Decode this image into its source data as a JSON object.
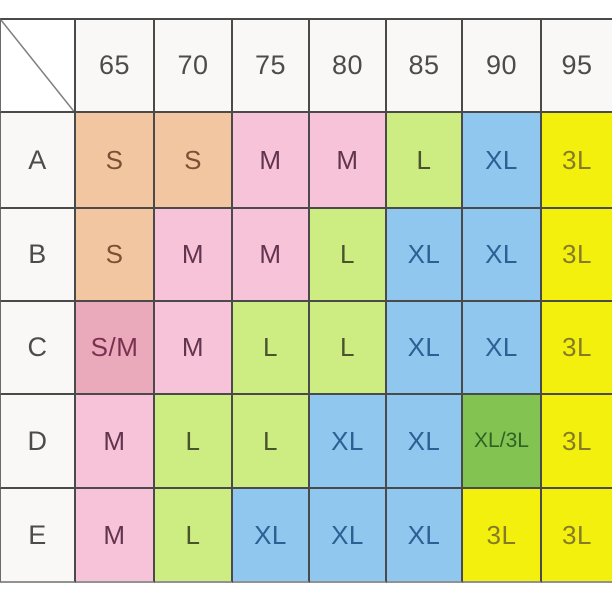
{
  "table": {
    "corner_label": "",
    "column_headers": [
      "65",
      "70",
      "75",
      "80",
      "85",
      "90",
      "95"
    ],
    "rows": [
      {
        "label": "A",
        "cells": [
          {
            "text": "S",
            "color": "peach"
          },
          {
            "text": "S",
            "color": "peach"
          },
          {
            "text": "M",
            "color": "pink"
          },
          {
            "text": "M",
            "color": "pink"
          },
          {
            "text": "L",
            "color": "lightgreen"
          },
          {
            "text": "XL",
            "color": "blue"
          },
          {
            "text": "3L",
            "color": "yellow"
          }
        ]
      },
      {
        "label": "B",
        "cells": [
          {
            "text": "S",
            "color": "peach"
          },
          {
            "text": "M",
            "color": "pink"
          },
          {
            "text": "M",
            "color": "pink"
          },
          {
            "text": "L",
            "color": "lightgreen"
          },
          {
            "text": "XL",
            "color": "blue"
          },
          {
            "text": "XL",
            "color": "blue"
          },
          {
            "text": "3L",
            "color": "yellow"
          }
        ]
      },
      {
        "label": "C",
        "cells": [
          {
            "text": "S/M",
            "color": "rose"
          },
          {
            "text": "M",
            "color": "pink"
          },
          {
            "text": "L",
            "color": "lightgreen"
          },
          {
            "text": "L",
            "color": "lightgreen"
          },
          {
            "text": "XL",
            "color": "blue"
          },
          {
            "text": "XL",
            "color": "blue"
          },
          {
            "text": "3L",
            "color": "yellow"
          }
        ]
      },
      {
        "label": "D",
        "cells": [
          {
            "text": "M",
            "color": "pink"
          },
          {
            "text": "L",
            "color": "lightgreen"
          },
          {
            "text": "L",
            "color": "lightgreen"
          },
          {
            "text": "XL",
            "color": "blue"
          },
          {
            "text": "XL",
            "color": "blue"
          },
          {
            "text": "XL/3L",
            "color": "darkgreen"
          },
          {
            "text": "3L",
            "color": "yellow"
          }
        ]
      },
      {
        "label": "E",
        "cells": [
          {
            "text": "M",
            "color": "pink"
          },
          {
            "text": "L",
            "color": "lightgreen"
          },
          {
            "text": "XL",
            "color": "blue"
          },
          {
            "text": "XL",
            "color": "blue"
          },
          {
            "text": "XL",
            "color": "blue"
          },
          {
            "text": "3L",
            "color": "yellow"
          },
          {
            "text": "3L",
            "color": "yellow"
          }
        ]
      }
    ]
  },
  "palette": {
    "header": {
      "bg": "#f9f8f6",
      "text": "#4c4c4c"
    },
    "peach": {
      "bg": "#f2c6a1",
      "text": "#7a5132"
    },
    "pink": {
      "bg": "#f7c3d8",
      "text": "#62344e"
    },
    "rose": {
      "bg": "#eaaabb",
      "text": "#7b3050"
    },
    "lightgreen": {
      "bg": "#cdec82",
      "text": "#49542c"
    },
    "blue": {
      "bg": "#90c7ef",
      "text": "#2d5f94"
    },
    "yellow": {
      "bg": "#f4f00e",
      "text": "#857a25"
    },
    "darkgreen": {
      "bg": "#83c352",
      "text": "#2e6324"
    }
  },
  "chart_data": {
    "type": "table",
    "title": "",
    "columns": [
      "65",
      "70",
      "75",
      "80",
      "85",
      "90",
      "95"
    ],
    "row_labels": [
      "A",
      "B",
      "C",
      "D",
      "E"
    ],
    "values": [
      [
        "S",
        "S",
        "M",
        "M",
        "L",
        "XL",
        "3L"
      ],
      [
        "S",
        "M",
        "M",
        "L",
        "XL",
        "XL",
        "3L"
      ],
      [
        "S/M",
        "M",
        "L",
        "L",
        "XL",
        "XL",
        "3L"
      ],
      [
        "M",
        "L",
        "L",
        "XL",
        "XL",
        "XL/3L",
        "3L"
      ],
      [
        "M",
        "L",
        "XL",
        "XL",
        "XL",
        "3L",
        "3L"
      ]
    ]
  }
}
